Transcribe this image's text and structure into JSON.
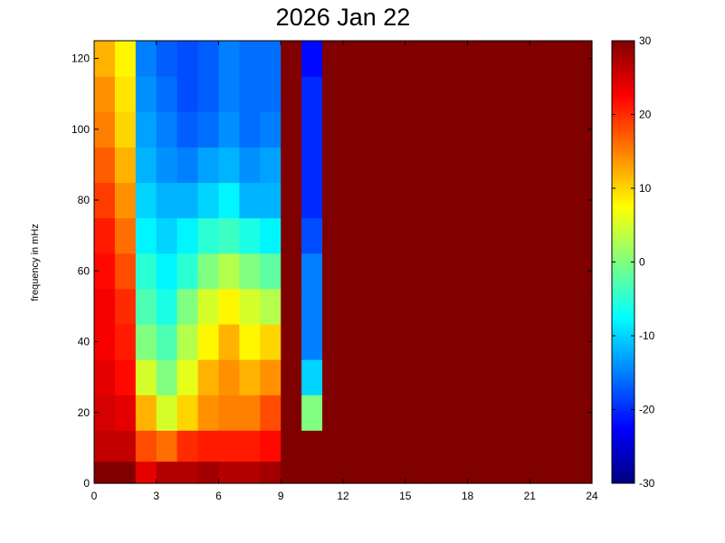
{
  "chart_data": {
    "type": "heatmap",
    "title": "2026 Jan 22",
    "xlabel": "",
    "ylabel": "frequency in mHz",
    "xlim": [
      0,
      24
    ],
    "ylim": [
      0,
      125
    ],
    "x_ticks": [
      0,
      3,
      6,
      9,
      12,
      15,
      18,
      21,
      24
    ],
    "y_ticks": [
      0,
      20,
      40,
      60,
      80,
      100,
      120
    ],
    "colorbar": {
      "colormap": "jet",
      "clim": [
        -30,
        30
      ],
      "ticks": [
        -30,
        -20,
        -10,
        0,
        10,
        20,
        30
      ]
    },
    "x_centers": [
      0.5,
      1.5,
      2.5,
      3.5,
      4.5,
      5.5,
      6.5,
      7.5,
      8.5,
      9.5,
      10.5,
      11.5,
      12.5,
      13.5,
      14.5,
      15.5,
      16.5,
      17.5,
      18.5,
      19.5,
      20.5,
      21.5,
      22.5,
      23.5
    ],
    "y_centers": [
      2.5,
      10,
      20,
      30,
      40,
      50,
      60,
      70,
      80,
      90,
      100,
      110,
      120
    ],
    "values": [
      [
        30,
        30,
        24,
        27,
        27,
        28,
        27,
        27,
        28,
        30,
        30,
        30,
        30,
        30,
        30,
        30,
        30,
        30,
        30,
        30,
        30,
        30,
        30,
        30
      ],
      [
        26,
        26,
        18,
        16,
        20,
        21,
        21,
        21,
        22,
        30,
        30,
        30,
        30,
        30,
        30,
        30,
        30,
        30,
        30,
        30,
        30,
        30,
        30,
        30
      ],
      [
        25,
        24,
        12,
        5,
        10,
        14,
        15,
        15,
        18,
        30,
        0,
        30,
        30,
        30,
        30,
        30,
        30,
        30,
        30,
        30,
        30,
        30,
        30,
        30
      ],
      [
        24,
        22,
        5,
        0,
        6,
        12,
        14,
        12,
        14,
        30,
        -10,
        30,
        30,
        30,
        30,
        30,
        30,
        30,
        30,
        30,
        30,
        30,
        30,
        30
      ],
      [
        23,
        21,
        0,
        -3,
        3,
        8,
        12,
        8,
        10,
        30,
        -15,
        30,
        30,
        30,
        30,
        30,
        30,
        30,
        30,
        30,
        30,
        30,
        30,
        30
      ],
      [
        23,
        20,
        -3,
        -6,
        0,
        5,
        8,
        5,
        3,
        30,
        -15,
        30,
        30,
        30,
        30,
        30,
        30,
        30,
        30,
        30,
        30,
        30,
        30,
        30
      ],
      [
        22,
        18,
        -5,
        -8,
        -5,
        0,
        3,
        0,
        -2,
        30,
        -15,
        30,
        30,
        30,
        30,
        30,
        30,
        30,
        30,
        30,
        30,
        30,
        30,
        30
      ],
      [
        21,
        16,
        -8,
        -10,
        -8,
        -5,
        -4,
        -6,
        -8,
        30,
        -18,
        30,
        30,
        30,
        30,
        30,
        30,
        30,
        30,
        30,
        30,
        30,
        30,
        30
      ],
      [
        19,
        14,
        -10,
        -12,
        -12,
        -10,
        -8,
        -12,
        -12,
        30,
        -20,
        30,
        30,
        30,
        30,
        30,
        30,
        30,
        30,
        30,
        30,
        30,
        30,
        30
      ],
      [
        17,
        12,
        -12,
        -14,
        -15,
        -13,
        -12,
        -14,
        -13,
        30,
        -20,
        30,
        30,
        30,
        30,
        30,
        30,
        30,
        30,
        30,
        30,
        30,
        30,
        30
      ],
      [
        15,
        10,
        -13,
        -15,
        -17,
        -16,
        -14,
        -16,
        -15,
        30,
        -20,
        30,
        30,
        30,
        30,
        30,
        30,
        30,
        30,
        30,
        30,
        30,
        30,
        30
      ],
      [
        14,
        9,
        -14,
        -16,
        -18,
        -17,
        -15,
        -16,
        -16,
        30,
        -20,
        30,
        30,
        30,
        30,
        30,
        30,
        30,
        30,
        30,
        30,
        30,
        30,
        30
      ],
      [
        12,
        8,
        -15,
        -17,
        -18,
        -17,
        -15,
        -16,
        -16,
        30,
        -22,
        30,
        30,
        30,
        30,
        30,
        30,
        30,
        30,
        30,
        30,
        30,
        30,
        30
      ]
    ]
  }
}
